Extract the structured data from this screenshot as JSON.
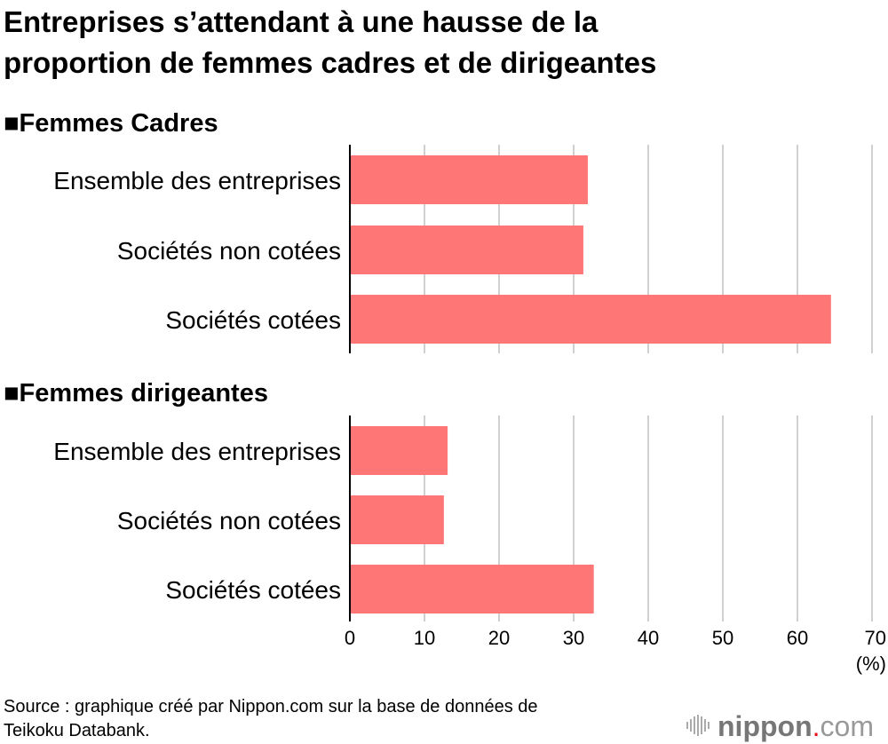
{
  "title_lines": [
    "Entreprises s’attendant à une hausse de la",
    "proportion de femmes cadres et de dirigeantes"
  ],
  "source_lines": [
    "Source : graphique créé par Nippon.com sur la base de données de",
    "Teikoku Databank."
  ],
  "logo": {
    "text": "nippon",
    "dot": ".",
    "suffix": "com",
    "dot_color": "#e8141c",
    "text_color": "#777777"
  },
  "colors": {
    "bar": "#ff7676",
    "grid": "#d0d0d0",
    "axis": "#000000"
  },
  "chart_data": [
    {
      "type": "bar",
      "orientation": "horizontal",
      "title": "■Femmes Cadres",
      "categories": [
        "Ensemble des entreprises",
        "Sociétés non cotées",
        "Sociétés cotées"
      ],
      "values": [
        31.9,
        31.3,
        64.5
      ],
      "xlim": [
        0,
        70
      ],
      "grid": true
    },
    {
      "type": "bar",
      "orientation": "horizontal",
      "title": "■Femmes dirigeantes",
      "categories": [
        "Ensemble des entreprises",
        "Sociétés non cotées",
        "Sociétés cotées"
      ],
      "values": [
        13.1,
        12.6,
        32.7
      ],
      "xlim": [
        0,
        70
      ],
      "xticks": [
        "0",
        "10",
        "20",
        "30",
        "40",
        "50",
        "60",
        "70"
      ],
      "xunit": "(%)",
      "grid": true
    }
  ]
}
